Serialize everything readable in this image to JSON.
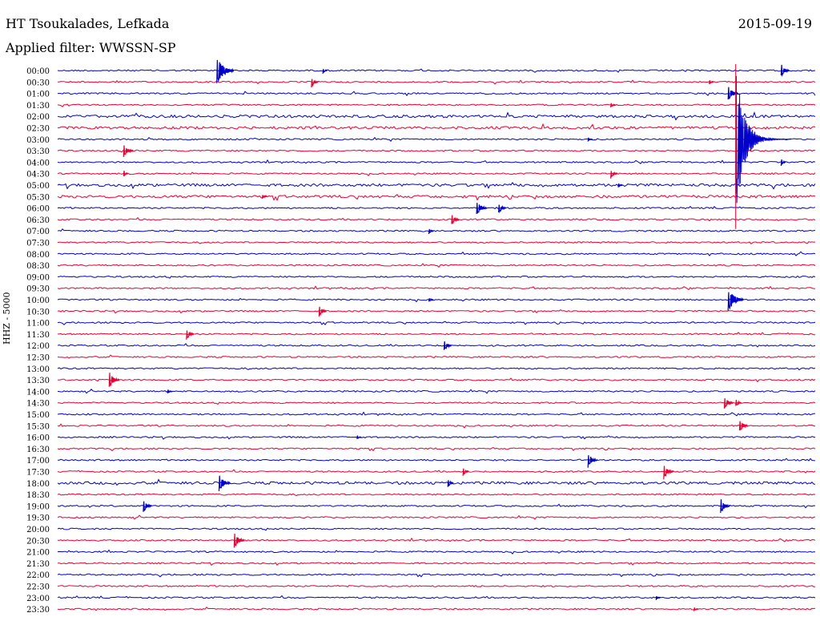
{
  "header": {
    "station": "HT Tsoukalades, Lefkada",
    "date": "2015-09-19",
    "filter": "Applied filter: WWSSN-SP"
  },
  "chart_data": {
    "type": "helicorder",
    "title": "HT Tsoukalades, Lefkada",
    "ylabel": "HHZ - 5000",
    "colors": [
      "#0000cc",
      "#ee0033"
    ],
    "rows": [
      "00:00",
      "00:30",
      "01:00",
      "01:30",
      "02:00",
      "02:30",
      "03:00",
      "03:30",
      "04:00",
      "04:30",
      "05:00",
      "05:30",
      "06:00",
      "06:30",
      "07:00",
      "07:30",
      "08:00",
      "08:30",
      "09:00",
      "09:30",
      "10:00",
      "10:30",
      "11:00",
      "11:30",
      "12:00",
      "12:30",
      "13:00",
      "13:30",
      "14:00",
      "14:30",
      "15:00",
      "15:30",
      "16:00",
      "16:30",
      "17:00",
      "17:30",
      "18:00",
      "18:30",
      "19:00",
      "19:30",
      "20:00",
      "20:30",
      "21:00",
      "21:30",
      "22:00",
      "22:30",
      "23:00",
      "23:30"
    ],
    "events": [
      {
        "row": 0,
        "pos": 0.21,
        "amp": 18
      },
      {
        "row": 0,
        "pos": 0.35,
        "amp": 4
      },
      {
        "row": 0,
        "pos": 0.955,
        "amp": 9
      },
      {
        "row": 1,
        "pos": 0.335,
        "amp": 7
      },
      {
        "row": 1,
        "pos": 0.86,
        "amp": 3
      },
      {
        "row": 2,
        "pos": 0.885,
        "amp": 11
      },
      {
        "row": 3,
        "pos": 0.73,
        "amp": 4
      },
      {
        "row": 6,
        "pos": 0.7,
        "amp": 3
      },
      {
        "row": 6,
        "pos": 0.895,
        "amp": 100
      },
      {
        "row": 7,
        "pos": 0.087,
        "amp": 10
      },
      {
        "row": 8,
        "pos": 0.955,
        "amp": 5
      },
      {
        "row": 9,
        "pos": 0.087,
        "amp": 5
      },
      {
        "row": 9,
        "pos": 0.73,
        "amp": 7
      },
      {
        "row": 10,
        "pos": 0.74,
        "amp": 3
      },
      {
        "row": 11,
        "pos": 0.27,
        "amp": 3
      },
      {
        "row": 12,
        "pos": 0.553,
        "amp": 11
      },
      {
        "row": 12,
        "pos": 0.582,
        "amp": 8
      },
      {
        "row": 13,
        "pos": 0.52,
        "amp": 8
      },
      {
        "row": 14,
        "pos": 0.49,
        "amp": 4
      },
      {
        "row": 20,
        "pos": 0.49,
        "amp": 3
      },
      {
        "row": 20,
        "pos": 0.885,
        "amp": 16
      },
      {
        "row": 21,
        "pos": 0.345,
        "amp": 8
      },
      {
        "row": 23,
        "pos": 0.17,
        "amp": 8
      },
      {
        "row": 24,
        "pos": 0.51,
        "amp": 8
      },
      {
        "row": 27,
        "pos": 0.068,
        "amp": 11
      },
      {
        "row": 28,
        "pos": 0.145,
        "amp": 3
      },
      {
        "row": 29,
        "pos": 0.88,
        "amp": 9
      },
      {
        "row": 29,
        "pos": 0.895,
        "amp": 6
      },
      {
        "row": 31,
        "pos": 0.9,
        "amp": 9
      },
      {
        "row": 32,
        "pos": 0.395,
        "amp": 3
      },
      {
        "row": 34,
        "pos": 0.7,
        "amp": 10
      },
      {
        "row": 35,
        "pos": 0.535,
        "amp": 6
      },
      {
        "row": 35,
        "pos": 0.8,
        "amp": 10
      },
      {
        "row": 36,
        "pos": 0.213,
        "amp": 12
      },
      {
        "row": 36,
        "pos": 0.515,
        "amp": 6
      },
      {
        "row": 38,
        "pos": 0.113,
        "amp": 9
      },
      {
        "row": 38,
        "pos": 0.875,
        "amp": 10
      },
      {
        "row": 41,
        "pos": 0.233,
        "amp": 11
      },
      {
        "row": 46,
        "pos": 0.79,
        "amp": 3
      },
      {
        "row": 47,
        "pos": 0.84,
        "amp": 3
      }
    ]
  }
}
